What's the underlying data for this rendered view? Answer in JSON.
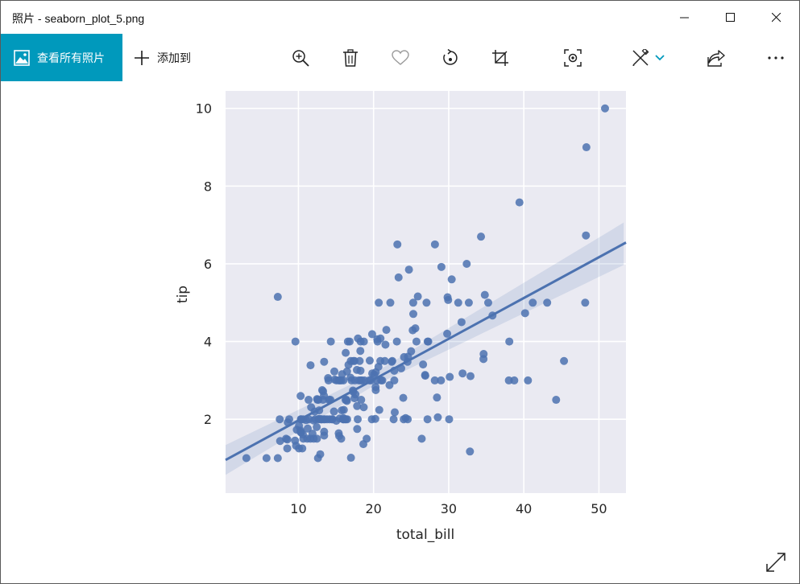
{
  "window": {
    "title": "照片 - seaborn_plot_5.png"
  },
  "toolbar": {
    "view_all_label": "查看所有照片",
    "add_to_label": "添加到",
    "icons": [
      "zoom-in-icon",
      "delete-icon",
      "heart-icon",
      "rotate-icon",
      "crop-icon",
      "enhance-icon",
      "edit-icon",
      "chevron-down-icon",
      "share-icon",
      "more-icon"
    ]
  },
  "colors": {
    "accent": "#0099bc",
    "plot_bg": "#eaeaf2",
    "marker": "#4c72b0"
  },
  "chart_data": {
    "type": "scatter",
    "xlabel": "total_bill",
    "ylabel": "tip",
    "xlim": [
      0.3,
      53.6
    ],
    "ylim": [
      0.1,
      10.45
    ],
    "xticks": [
      10,
      20,
      30,
      40,
      50
    ],
    "yticks": [
      2,
      4,
      6,
      8,
      10
    ],
    "grid": true,
    "regression": {
      "slope": 0.105,
      "intercept": 0.92,
      "ci": true
    },
    "points": [
      [
        3.07,
        1.0
      ],
      [
        5.75,
        1.0
      ],
      [
        7.25,
        1.0
      ],
      [
        7.25,
        5.15
      ],
      [
        7.51,
        2.0
      ],
      [
        7.56,
        1.44
      ],
      [
        8.35,
        1.5
      ],
      [
        8.51,
        1.25
      ],
      [
        8.52,
        1.48
      ],
      [
        8.58,
        1.92
      ],
      [
        8.77,
        2.0
      ],
      [
        9.55,
        1.45
      ],
      [
        9.6,
        4.0
      ],
      [
        9.68,
        1.32
      ],
      [
        9.78,
        1.73
      ],
      [
        10.07,
        1.83
      ],
      [
        10.07,
        1.25
      ],
      [
        10.27,
        1.71
      ],
      [
        10.29,
        2.6
      ],
      [
        10.33,
        1.67
      ],
      [
        10.33,
        2.0
      ],
      [
        10.34,
        1.66
      ],
      [
        10.34,
        2.0
      ],
      [
        10.51,
        1.25
      ],
      [
        10.59,
        1.61
      ],
      [
        10.63,
        2.0
      ],
      [
        10.65,
        1.5
      ],
      [
        11.02,
        1.98
      ],
      [
        11.17,
        1.5
      ],
      [
        11.24,
        1.76
      ],
      [
        11.35,
        2.5
      ],
      [
        11.38,
        2.0
      ],
      [
        11.59,
        1.5
      ],
      [
        11.61,
        3.39
      ],
      [
        11.69,
        2.31
      ],
      [
        11.87,
        1.63
      ],
      [
        12.02,
        1.97
      ],
      [
        12.03,
        1.5
      ],
      [
        12.16,
        2.2
      ],
      [
        12.26,
        2.0
      ],
      [
        12.43,
        1.8
      ],
      [
        12.46,
        1.5
      ],
      [
        12.48,
        2.52
      ],
      [
        12.54,
        2.5
      ],
      [
        12.6,
        1.0
      ],
      [
        12.66,
        2.5
      ],
      [
        12.69,
        2.0
      ],
      [
        12.74,
        2.01
      ],
      [
        12.76,
        2.23
      ],
      [
        12.9,
        1.1
      ],
      [
        13.0,
        2.0
      ],
      [
        13.03,
        2.0
      ],
      [
        13.13,
        2.0
      ],
      [
        13.16,
        2.75
      ],
      [
        13.27,
        2.5
      ],
      [
        13.28,
        2.72
      ],
      [
        13.37,
        2.0
      ],
      [
        13.39,
        2.61
      ],
      [
        13.42,
        3.48
      ],
      [
        13.42,
        1.68
      ],
      [
        13.42,
        1.58
      ],
      [
        13.51,
        2.0
      ],
      [
        13.81,
        2.0
      ],
      [
        13.94,
        3.06
      ],
      [
        14.0,
        3.0
      ],
      [
        14.07,
        2.5
      ],
      [
        14.15,
        2.0
      ],
      [
        14.26,
        2.5
      ],
      [
        14.31,
        4.0
      ],
      [
        14.48,
        2.0
      ],
      [
        14.52,
        2.0
      ],
      [
        14.73,
        2.2
      ],
      [
        14.78,
        3.23
      ],
      [
        14.83,
        3.02
      ],
      [
        15.04,
        1.96
      ],
      [
        15.06,
        3.0
      ],
      [
        15.36,
        1.64
      ],
      [
        15.38,
        3.0
      ],
      [
        15.42,
        1.57
      ],
      [
        15.48,
        2.02
      ],
      [
        15.53,
        3.0
      ],
      [
        15.69,
        3.0
      ],
      [
        15.69,
        1.5
      ],
      [
        15.77,
        2.23
      ],
      [
        15.81,
        3.16
      ],
      [
        15.95,
        2.0
      ],
      [
        15.98,
        2.03
      ],
      [
        15.98,
        3.0
      ],
      [
        16.0,
        2.0
      ],
      [
        16.04,
        2.24
      ],
      [
        16.21,
        2.0
      ],
      [
        16.27,
        2.5
      ],
      [
        16.29,
        3.71
      ],
      [
        16.31,
        2.0
      ],
      [
        16.4,
        2.5
      ],
      [
        16.45,
        2.47
      ],
      [
        16.47,
        3.23
      ],
      [
        16.49,
        2.0
      ],
      [
        16.58,
        4.0
      ],
      [
        16.66,
        3.4
      ],
      [
        16.82,
        4.0
      ],
      [
        16.93,
        3.07
      ],
      [
        16.97,
        3.5
      ],
      [
        16.99,
        1.01
      ],
      [
        17.07,
        3.0
      ],
      [
        17.26,
        2.74
      ],
      [
        17.29,
        2.71
      ],
      [
        17.31,
        3.5
      ],
      [
        17.46,
        2.54
      ],
      [
        17.47,
        3.5
      ],
      [
        17.51,
        3.0
      ],
      [
        17.59,
        2.64
      ],
      [
        17.78,
        3.27
      ],
      [
        17.81,
        2.34
      ],
      [
        17.82,
        1.75
      ],
      [
        17.89,
        2.0
      ],
      [
        17.92,
        4.08
      ],
      [
        18.04,
        3.0
      ],
      [
        18.15,
        3.5
      ],
      [
        18.24,
        3.76
      ],
      [
        18.26,
        3.25
      ],
      [
        18.28,
        4.0
      ],
      [
        18.29,
        3.0
      ],
      [
        18.35,
        2.5
      ],
      [
        18.43,
        3.0
      ],
      [
        18.64,
        1.36
      ],
      [
        18.69,
        2.31
      ],
      [
        18.71,
        4.0
      ],
      [
        18.78,
        3.0
      ],
      [
        19.08,
        1.5
      ],
      [
        19.44,
        3.0
      ],
      [
        19.49,
        3.51
      ],
      [
        19.65,
        3.0
      ],
      [
        19.77,
        2.0
      ],
      [
        19.81,
        4.19
      ],
      [
        19.82,
        3.18
      ],
      [
        20.08,
        3.15
      ],
      [
        20.23,
        2.01
      ],
      [
        20.27,
        2.83
      ],
      [
        20.29,
        2.75
      ],
      [
        20.29,
        3.21
      ],
      [
        20.45,
        3.0
      ],
      [
        20.49,
        4.06
      ],
      [
        20.53,
        4.0
      ],
      [
        20.65,
        3.35
      ],
      [
        20.69,
        5.0
      ],
      [
        20.76,
        2.24
      ],
      [
        20.9,
        3.5
      ],
      [
        20.92,
        4.08
      ],
      [
        21.01,
        3.0
      ],
      [
        21.16,
        3.0
      ],
      [
        21.5,
        3.5
      ],
      [
        21.58,
        3.92
      ],
      [
        21.7,
        4.3
      ],
      [
        22.12,
        2.88
      ],
      [
        22.23,
        5.0
      ],
      [
        22.42,
        3.48
      ],
      [
        22.49,
        3.5
      ],
      [
        22.67,
        2.0
      ],
      [
        22.75,
        3.25
      ],
      [
        22.76,
        3.0
      ],
      [
        22.82,
        2.18
      ],
      [
        23.1,
        4.0
      ],
      [
        23.17,
        6.5
      ],
      [
        23.33,
        5.65
      ],
      [
        23.68,
        3.31
      ],
      [
        23.95,
        2.55
      ],
      [
        24.01,
        2.0
      ],
      [
        24.06,
        3.6
      ],
      [
        24.27,
        2.03
      ],
      [
        24.52,
        3.48
      ],
      [
        24.55,
        2.0
      ],
      [
        24.59,
        3.61
      ],
      [
        24.71,
        5.85
      ],
      [
        25.0,
        3.75
      ],
      [
        25.21,
        4.29
      ],
      [
        25.28,
        5.0
      ],
      [
        25.29,
        4.71
      ],
      [
        25.56,
        4.34
      ],
      [
        25.71,
        4.0
      ],
      [
        25.89,
        5.16
      ],
      [
        26.41,
        1.5
      ],
      [
        26.59,
        3.41
      ],
      [
        26.86,
        3.14
      ],
      [
        26.88,
        3.12
      ],
      [
        27.05,
        5.0
      ],
      [
        27.18,
        2.0
      ],
      [
        27.2,
        4.0
      ],
      [
        27.28,
        4.0
      ],
      [
        28.15,
        3.0
      ],
      [
        28.17,
        6.5
      ],
      [
        28.44,
        2.56
      ],
      [
        28.55,
        2.05
      ],
      [
        28.97,
        3.0
      ],
      [
        29.03,
        5.92
      ],
      [
        29.8,
        4.2
      ],
      [
        29.85,
        5.14
      ],
      [
        29.93,
        5.07
      ],
      [
        30.06,
        2.0
      ],
      [
        30.14,
        3.09
      ],
      [
        30.4,
        5.6
      ],
      [
        31.27,
        5.0
      ],
      [
        31.71,
        4.5
      ],
      [
        31.85,
        3.18
      ],
      [
        32.4,
        6.0
      ],
      [
        32.68,
        5.0
      ],
      [
        32.83,
        1.17
      ],
      [
        32.9,
        3.11
      ],
      [
        34.3,
        6.7
      ],
      [
        34.63,
        3.55
      ],
      [
        34.65,
        3.68
      ],
      [
        34.81,
        5.2
      ],
      [
        35.26,
        5.0
      ],
      [
        35.83,
        4.67
      ],
      [
        38.01,
        3.0
      ],
      [
        38.07,
        4.0
      ],
      [
        38.73,
        3.0
      ],
      [
        39.42,
        7.58
      ],
      [
        40.17,
        4.73
      ],
      [
        40.55,
        3.0
      ],
      [
        41.19,
        5.0
      ],
      [
        43.11,
        5.0
      ],
      [
        44.3,
        2.5
      ],
      [
        45.35,
        3.5
      ],
      [
        48.17,
        5.0
      ],
      [
        48.27,
        6.73
      ],
      [
        48.33,
        9.0
      ],
      [
        50.81,
        10.0
      ]
    ]
  }
}
